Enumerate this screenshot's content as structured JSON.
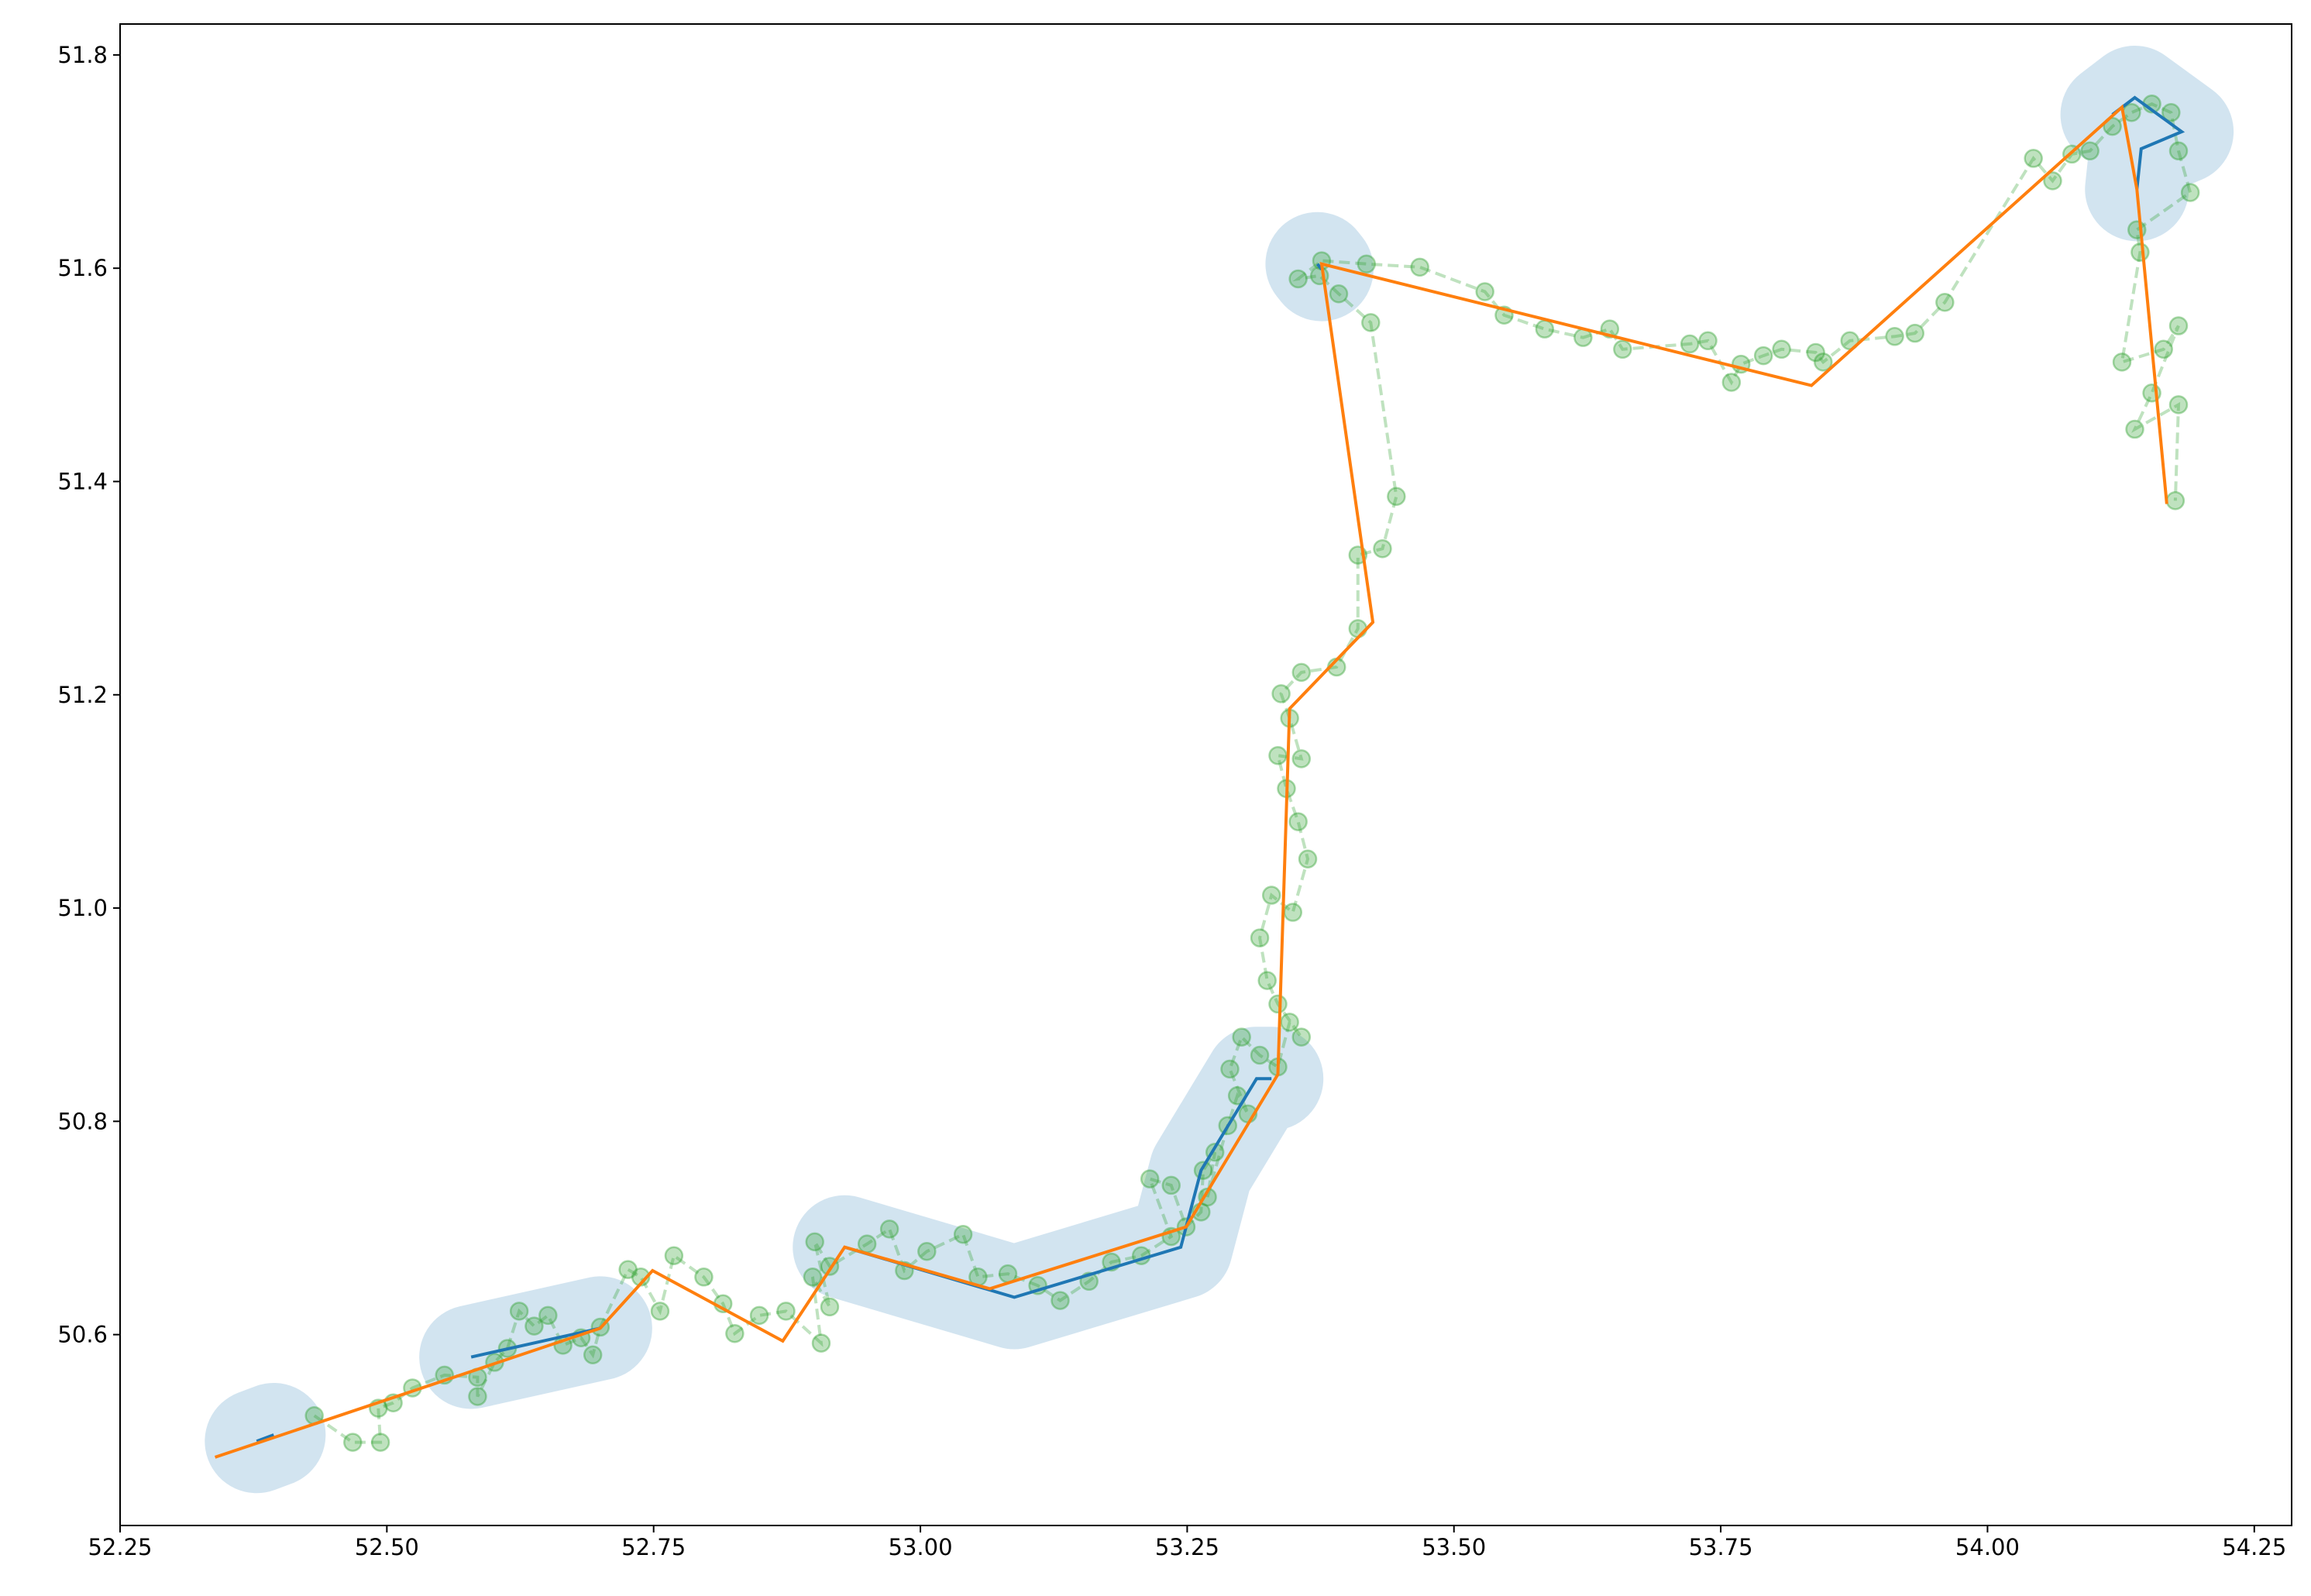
{
  "chart_data": {
    "type": "line",
    "xlim": [
      52.25,
      54.285
    ],
    "ylim": [
      50.421,
      51.829
    ],
    "xticks": [
      52.25,
      {
        "value": 52.5,
        "label": "52.50"
      },
      52.75,
      {
        "value": 53.0,
        "label": "53.00"
      },
      53.25,
      {
        "value": 53.5,
        "label": "53.50"
      },
      53.75,
      {
        "value": 54.0,
        "label": "54.00"
      },
      54.25
    ],
    "yticks": [
      50.6,
      50.8,
      {
        "value": 51.0,
        "label": "51.0"
      },
      51.2,
      51.4,
      51.6,
      51.8
    ],
    "series": [
      {
        "color": "#2ca02c",
        "style": "dashed",
        "marker": "circle",
        "alpha": 0.3,
        "x": [
          52.432,
          52.468,
          52.494,
          52.492,
          52.506,
          52.524,
          52.554,
          52.585,
          52.585,
          52.601,
          52.613,
          52.624,
          52.638,
          52.651,
          52.665,
          52.682,
          52.693,
          52.7,
          52.726,
          52.738,
          52.756,
          52.769,
          52.797,
          52.815,
          52.826,
          52.849,
          52.874,
          52.907,
          52.899,
          52.915,
          52.901,
          52.915,
          52.95,
          52.971,
          52.985,
          53.006,
          53.04,
          53.054,
          53.082,
          53.11,
          53.131,
          53.158,
          53.179,
          53.207,
          53.235,
          53.215,
          53.235,
          53.249,
          53.263,
          53.265,
          53.276,
          53.269,
          53.288,
          53.297,
          53.307,
          53.29,
          53.301,
          53.318,
          53.335,
          53.346,
          53.357,
          53.335,
          53.325,
          53.318,
          53.329,
          53.349,
          53.363,
          53.354,
          53.343,
          53.335,
          53.357,
          53.346,
          53.338,
          53.357,
          53.39,
          53.41,
          53.41,
          53.433,
          53.446,
          53.422,
          53.392,
          53.374,
          53.354,
          53.376,
          53.418,
          53.468,
          53.529,
          53.547,
          53.585,
          53.621,
          53.646,
          53.658,
          53.721,
          53.738,
          53.76,
          53.769,
          53.79,
          53.807,
          53.839,
          53.846,
          53.871,
          53.913,
          53.932,
          53.96,
          54.043,
          54.061,
          54.079,
          54.096,
          54.117,
          54.135,
          54.154,
          54.172,
          54.179,
          54.19,
          54.14,
          54.143,
          54.126,
          54.165,
          54.179,
          54.154,
          54.138,
          54.179,
          54.176
        ],
        "values": [
          50.524,
          50.499,
          50.499,
          50.531,
          50.536,
          50.55,
          50.562,
          50.56,
          50.542,
          50.574,
          50.587,
          50.622,
          50.608,
          50.618,
          50.59,
          50.597,
          50.581,
          50.607,
          50.661,
          50.654,
          50.622,
          50.674,
          50.654,
          50.629,
          50.601,
          50.618,
          50.622,
          50.592,
          50.654,
          50.626,
          50.687,
          50.664,
          50.685,
          50.699,
          50.66,
          50.678,
          50.694,
          50.654,
          50.657,
          50.646,
          50.632,
          50.65,
          50.668,
          50.674,
          50.692,
          50.746,
          50.74,
          50.701,
          50.715,
          50.754,
          50.771,
          50.729,
          50.796,
          50.824,
          50.807,
          50.849,
          50.879,
          50.862,
          50.851,
          50.893,
          50.879,
          50.91,
          50.932,
          50.972,
          51.012,
          50.996,
          51.046,
          51.081,
          51.112,
          51.143,
          51.14,
          51.178,
          51.201,
          51.221,
          51.226,
          51.262,
          51.331,
          51.337,
          51.386,
          51.549,
          51.576,
          51.593,
          51.59,
          51.607,
          51.604,
          51.601,
          51.578,
          51.556,
          51.543,
          51.535,
          51.543,
          51.524,
          51.529,
          51.532,
          51.493,
          51.51,
          51.518,
          51.524,
          51.521,
          51.512,
          51.532,
          51.536,
          51.539,
          51.568,
          51.703,
          51.682,
          51.707,
          51.71,
          51.733,
          51.746,
          51.754,
          51.746,
          51.71,
          51.671,
          51.636,
          51.615,
          51.512,
          51.524,
          51.546,
          51.483,
          51.449,
          51.472,
          51.382
        ]
      },
      {
        "color": "#1f77b4",
        "buffer": true,
        "alpha": 0.2,
        "x": [
          52.378,
          52.394,
          null,
          52.579,
          52.7,
          null,
          52.929,
          53.088,
          53.244,
          53.263,
          53.315,
          53.329,
          null,
          53.372,
          53.376,
          null,
          54.117,
          54.138,
          54.182,
          54.144,
          54.14
        ],
        "values": [
          50.5,
          50.506,
          null,
          50.579,
          50.606,
          null,
          50.682,
          50.635,
          50.682,
          50.754,
          50.84,
          50.84,
          null,
          51.604,
          51.599,
          null,
          51.744,
          51.76,
          51.728,
          51.712,
          51.674
        ]
      },
      {
        "color": "#ff7f0e",
        "x": [
          52.339,
          52.7,
          52.749,
          52.871,
          52.929,
          53.065,
          53.249,
          53.335,
          53.346,
          53.424,
          53.376,
          53.835,
          54.126,
          54.14,
          54.168
        ],
        "values": [
          50.485,
          50.606,
          50.66,
          50.594,
          50.682,
          50.643,
          50.701,
          50.844,
          51.187,
          51.268,
          51.604,
          51.49,
          51.751,
          51.674,
          51.379
        ]
      }
    ]
  }
}
